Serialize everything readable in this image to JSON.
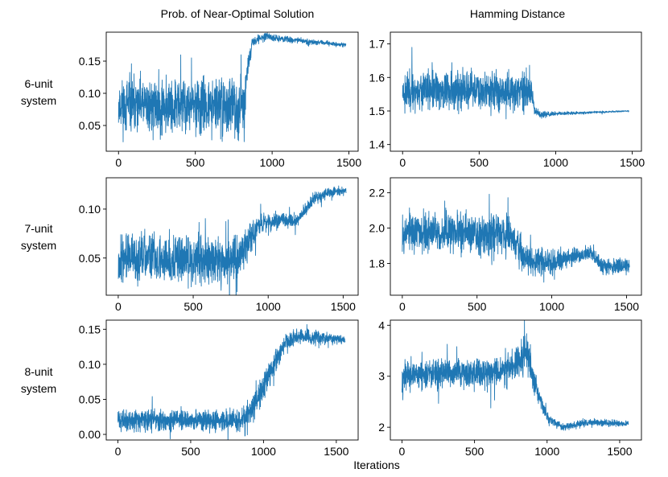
{
  "figure": {
    "column_titles": [
      "Prob. of Near-Optimal Solution",
      "Hamming Distance"
    ],
    "row_labels": [
      [
        "6-unit",
        "system"
      ],
      [
        "7-unit",
        "system"
      ],
      [
        "8-unit",
        "system"
      ]
    ],
    "xlabel": "Iterations",
    "line_color": "#1f77b4"
  },
  "chart_data": [
    {
      "type": "line",
      "id": "prob-6",
      "title": "Prob. of Near-Optimal Solution",
      "row": "6-unit system",
      "xlim": [
        -80,
        1560
      ],
      "ylim": [
        0.01,
        0.195
      ],
      "xticks": [
        0,
        500,
        1000,
        1500
      ],
      "yticks": [
        0.05,
        0.1,
        0.15
      ],
      "ytick_labels": [
        "0.05",
        "0.10",
        "0.15"
      ],
      "x_end": 1480,
      "profile": [
        [
          0,
          0.08
        ],
        [
          820,
          0.08
        ],
        [
          830,
          0.12
        ],
        [
          870,
          0.18
        ],
        [
          950,
          0.188
        ],
        [
          1100,
          0.184
        ],
        [
          1300,
          0.179
        ],
        [
          1480,
          0.175
        ]
      ],
      "noise": [
        [
          0,
          0.03
        ],
        [
          820,
          0.03
        ],
        [
          830,
          0.015
        ],
        [
          880,
          0.004
        ],
        [
          1480,
          0.002
        ]
      ],
      "seed": 11
    },
    {
      "type": "line",
      "id": "ham-6",
      "title": "Hamming Distance",
      "row": "6-unit system",
      "xlim": [
        -80,
        1560
      ],
      "ylim": [
        1.38,
        1.735
      ],
      "xticks": [
        0,
        500,
        1000,
        1500
      ],
      "yticks": [
        1.4,
        1.5,
        1.6,
        1.7
      ],
      "ytick_labels": [
        "1.4",
        "1.5",
        "1.6",
        "1.7"
      ],
      "x_end": 1480,
      "profile": [
        [
          0,
          1.56
        ],
        [
          840,
          1.56
        ],
        [
          860,
          1.5
        ],
        [
          900,
          1.49
        ],
        [
          1480,
          1.5
        ]
      ],
      "noise": [
        [
          0,
          0.04
        ],
        [
          840,
          0.04
        ],
        [
          860,
          0.01
        ],
        [
          1000,
          0.004
        ],
        [
          1480,
          0.001
        ]
      ],
      "seed": 23
    },
    {
      "type": "line",
      "id": "prob-7",
      "title": "Prob. of Near-Optimal Solution",
      "row": "7-unit system",
      "xlim": [
        -80,
        1600
      ],
      "ylim": [
        0.012,
        0.132
      ],
      "xticks": [
        0,
        500,
        1000,
        1500
      ],
      "yticks": [
        0.05,
        0.1
      ],
      "ytick_labels": [
        "0.05",
        "0.10"
      ],
      "x_end": 1520,
      "profile": [
        [
          0,
          0.05
        ],
        [
          700,
          0.048
        ],
        [
          800,
          0.05
        ],
        [
          880,
          0.07
        ],
        [
          950,
          0.086
        ],
        [
          1200,
          0.089
        ],
        [
          1300,
          0.11
        ],
        [
          1400,
          0.117
        ],
        [
          1520,
          0.119
        ]
      ],
      "noise": [
        [
          0,
          0.017
        ],
        [
          800,
          0.018
        ],
        [
          950,
          0.007
        ],
        [
          1200,
          0.005
        ],
        [
          1520,
          0.003
        ]
      ],
      "seed": 37
    },
    {
      "type": "line",
      "id": "ham-7",
      "title": "Hamming Distance",
      "row": "7-unit system",
      "xlim": [
        -80,
        1600
      ],
      "ylim": [
        1.62,
        2.285
      ],
      "xticks": [
        0,
        500,
        1000,
        1500
      ],
      "yticks": [
        1.8,
        2.0,
        2.2
      ],
      "ytick_labels": [
        "1.8",
        "2.0",
        "2.2"
      ],
      "x_end": 1520,
      "profile": [
        [
          0,
          1.98
        ],
        [
          720,
          1.97
        ],
        [
          800,
          1.85
        ],
        [
          900,
          1.8
        ],
        [
          1000,
          1.81
        ],
        [
          1150,
          1.84
        ],
        [
          1260,
          1.86
        ],
        [
          1340,
          1.78
        ],
        [
          1520,
          1.79
        ]
      ],
      "noise": [
        [
          0,
          0.08
        ],
        [
          720,
          0.08
        ],
        [
          850,
          0.06
        ],
        [
          1100,
          0.035
        ],
        [
          1520,
          0.025
        ]
      ],
      "seed": 53
    },
    {
      "type": "line",
      "id": "prob-8",
      "title": "Prob. of Near-Optimal Solution",
      "row": "8-unit system",
      "xlim": [
        -80,
        1650
      ],
      "ylim": [
        -0.008,
        0.163
      ],
      "xticks": [
        0,
        500,
        1000,
        1500
      ],
      "yticks": [
        0.0,
        0.05,
        0.1,
        0.15
      ],
      "ytick_labels": [
        "0.00",
        "0.05",
        "0.10",
        "0.15"
      ],
      "x_end": 1560,
      "profile": [
        [
          0,
          0.02
        ],
        [
          840,
          0.02
        ],
        [
          900,
          0.03
        ],
        [
          1050,
          0.09
        ],
        [
          1150,
          0.13
        ],
        [
          1250,
          0.14
        ],
        [
          1560,
          0.135
        ]
      ],
      "noise": [
        [
          0,
          0.01
        ],
        [
          840,
          0.01
        ],
        [
          950,
          0.015
        ],
        [
          1150,
          0.01
        ],
        [
          1560,
          0.004
        ]
      ],
      "seed": 71
    },
    {
      "type": "line",
      "id": "ham-8",
      "title": "Hamming Distance",
      "row": "8-unit system",
      "xlim": [
        -80,
        1650
      ],
      "ylim": [
        1.75,
        4.1
      ],
      "xticks": [
        0,
        500,
        1000,
        1500
      ],
      "yticks": [
        2,
        3,
        4
      ],
      "ytick_labels": [
        "2",
        "3",
        "4"
      ],
      "x_end": 1560,
      "profile": [
        [
          0,
          3.0
        ],
        [
          700,
          3.1
        ],
        [
          800,
          3.3
        ],
        [
          860,
          3.5
        ],
        [
          920,
          2.8
        ],
        [
          1000,
          2.2
        ],
        [
          1100,
          2.0
        ],
        [
          1300,
          2.1
        ],
        [
          1560,
          2.06
        ]
      ],
      "noise": [
        [
          0,
          0.2
        ],
        [
          700,
          0.2
        ],
        [
          860,
          0.3
        ],
        [
          950,
          0.1
        ],
        [
          1100,
          0.05
        ],
        [
          1560,
          0.04
        ]
      ],
      "seed": 97
    }
  ]
}
